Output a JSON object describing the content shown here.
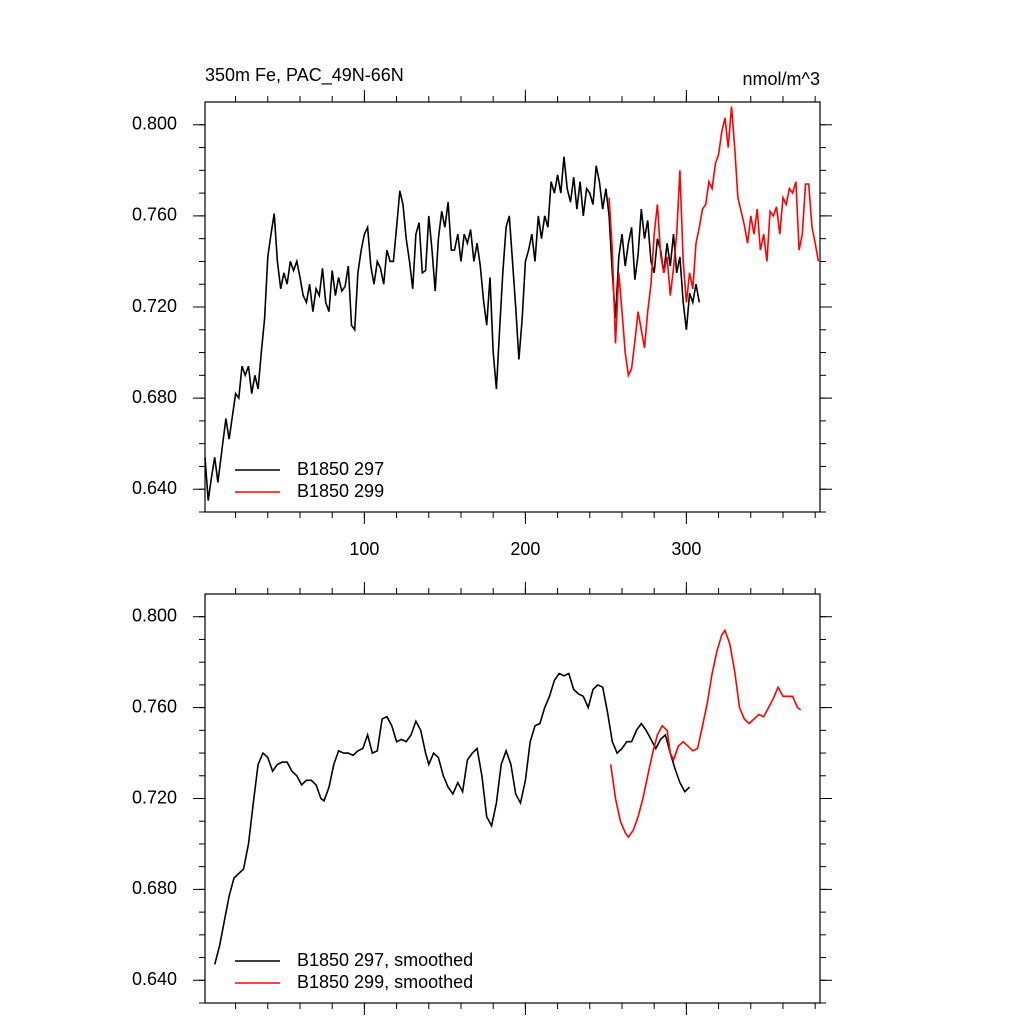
{
  "chart_data": [
    {
      "type": "line",
      "title": "350m Fe, PAC_49N-66N",
      "units": "nmol/m^3",
      "xlim": [
        1,
        383
      ],
      "xticks": [
        100,
        200,
        300
      ],
      "ylim": [
        0.63,
        0.81
      ],
      "yticks": [
        {
          "value": 0.64,
          "label": "0.640"
        },
        {
          "value": 0.68,
          "label": "0.680"
        },
        {
          "value": 0.72,
          "label": "0.720"
        },
        {
          "value": 0.76,
          "label": "0.760"
        },
        {
          "value": 0.8,
          "label": "0.800"
        }
      ],
      "legend": "lower left",
      "series": [
        {
          "name": "B1850 297",
          "color": "#000000",
          "x": [
            1,
            3,
            5,
            7,
            9,
            12,
            14,
            16,
            18,
            20,
            22,
            24,
            26,
            28,
            30,
            32,
            34,
            36,
            38,
            40,
            42,
            44,
            46,
            48,
            50,
            52,
            54,
            56,
            58,
            60,
            62,
            64,
            66,
            68,
            70,
            72,
            74,
            76,
            78,
            80,
            82,
            84,
            86,
            88,
            90,
            92,
            94,
            96,
            98,
            100,
            102,
            104,
            106,
            108,
            110,
            112,
            114,
            116,
            118,
            120,
            122,
            124,
            126,
            128,
            130,
            132,
            134,
            136,
            138,
            140,
            142,
            144,
            146,
            148,
            150,
            152,
            154,
            156,
            158,
            160,
            162,
            164,
            166,
            168,
            170,
            172,
            174,
            176,
            178,
            180,
            182,
            184,
            186,
            188,
            190,
            192,
            194,
            196,
            198,
            200,
            202,
            204,
            206,
            208,
            210,
            212,
            214,
            216,
            218,
            220,
            222,
            224,
            226,
            228,
            230,
            232,
            234,
            236,
            238,
            240,
            242,
            244,
            246,
            248,
            250,
            252,
            254,
            256,
            258,
            260,
            262,
            264,
            266,
            268,
            270,
            272,
            274,
            276,
            278,
            280,
            282,
            284,
            286,
            288,
            290,
            292,
            294,
            296,
            298,
            300,
            302,
            304,
            306,
            308
          ],
          "values": [
            0.654,
            0.635,
            0.645,
            0.654,
            0.643,
            0.66,
            0.671,
            0.662,
            0.672,
            0.682,
            0.68,
            0.694,
            0.69,
            0.694,
            0.682,
            0.69,
            0.684,
            0.7,
            0.715,
            0.742,
            0.752,
            0.761,
            0.74,
            0.728,
            0.735,
            0.73,
            0.74,
            0.736,
            0.74,
            0.733,
            0.725,
            0.722,
            0.73,
            0.718,
            0.728,
            0.725,
            0.737,
            0.722,
            0.718,
            0.736,
            0.725,
            0.733,
            0.727,
            0.729,
            0.738,
            0.712,
            0.71,
            0.735,
            0.745,
            0.752,
            0.755,
            0.738,
            0.73,
            0.74,
            0.737,
            0.73,
            0.745,
            0.74,
            0.74,
            0.755,
            0.771,
            0.765,
            0.75,
            0.74,
            0.728,
            0.752,
            0.757,
            0.735,
            0.736,
            0.76,
            0.745,
            0.727,
            0.75,
            0.762,
            0.755,
            0.766,
            0.745,
            0.745,
            0.752,
            0.74,
            0.752,
            0.748,
            0.754,
            0.74,
            0.748,
            0.738,
            0.723,
            0.712,
            0.733,
            0.7,
            0.684,
            0.71,
            0.735,
            0.755,
            0.76,
            0.74,
            0.72,
            0.697,
            0.715,
            0.74,
            0.745,
            0.752,
            0.74,
            0.76,
            0.75,
            0.76,
            0.755,
            0.775,
            0.77,
            0.778,
            0.77,
            0.786,
            0.772,
            0.766,
            0.777,
            0.763,
            0.775,
            0.76,
            0.772,
            0.77,
            0.765,
            0.782,
            0.775,
            0.763,
            0.772,
            0.76,
            0.735,
            0.715,
            0.742,
            0.752,
            0.738,
            0.748,
            0.755,
            0.732,
            0.743,
            0.763,
            0.75,
            0.758,
            0.74,
            0.735,
            0.75,
            0.745,
            0.735,
            0.748,
            0.738,
            0.752,
            0.735,
            0.742,
            0.722,
            0.71,
            0.726,
            0.722,
            0.73,
            0.722
          ]
        },
        {
          "name": "B1850 299",
          "color": "#ff0000",
          "x": [
            252,
            254,
            256,
            258,
            260,
            262,
            264,
            266,
            268,
            270,
            272,
            274,
            276,
            278,
            280,
            282,
            284,
            286,
            288,
            290,
            292,
            294,
            296,
            298,
            300,
            302,
            304,
            306,
            308,
            310,
            312,
            314,
            316,
            318,
            320,
            322,
            324,
            326,
            328,
            330,
            332,
            334,
            336,
            338,
            340,
            342,
            344,
            346,
            348,
            350,
            352,
            354,
            356,
            358,
            360,
            362,
            364,
            366,
            368,
            370,
            372,
            374,
            376,
            378,
            380,
            382
          ],
          "values": [
            0.768,
            0.745,
            0.704,
            0.735,
            0.718,
            0.7,
            0.69,
            0.693,
            0.705,
            0.718,
            0.71,
            0.702,
            0.718,
            0.73,
            0.752,
            0.765,
            0.743,
            0.735,
            0.742,
            0.725,
            0.737,
            0.752,
            0.78,
            0.74,
            0.722,
            0.735,
            0.728,
            0.748,
            0.755,
            0.763,
            0.765,
            0.775,
            0.772,
            0.783,
            0.787,
            0.797,
            0.803,
            0.79,
            0.808,
            0.79,
            0.768,
            0.762,
            0.756,
            0.748,
            0.76,
            0.752,
            0.763,
            0.745,
            0.752,
            0.74,
            0.762,
            0.76,
            0.764,
            0.752,
            0.768,
            0.765,
            0.772,
            0.77,
            0.775,
            0.745,
            0.752,
            0.774,
            0.774,
            0.755,
            0.748,
            0.74
          ]
        }
      ]
    },
    {
      "type": "line",
      "xlim": [
        1,
        383
      ],
      "ylim": [
        0.63,
        0.81
      ],
      "yticks": [
        {
          "value": 0.64,
          "label": "0.640"
        },
        {
          "value": 0.68,
          "label": "0.680"
        },
        {
          "value": 0.72,
          "label": "0.720"
        },
        {
          "value": 0.76,
          "label": "0.760"
        },
        {
          "value": 0.8,
          "label": "0.800"
        }
      ],
      "legend": "lower left",
      "series": [
        {
          "name": "B1850 297, smoothed",
          "color": "#000000",
          "x": [
            7,
            10,
            13,
            16,
            19,
            22,
            25,
            28,
            31,
            34,
            37,
            40,
            43,
            46,
            49,
            52,
            55,
            58,
            61,
            64,
            67,
            70,
            73,
            75,
            78,
            81,
            84,
            87,
            90,
            93,
            96,
            99,
            102,
            105,
            108,
            111,
            114,
            117,
            120,
            123,
            126,
            129,
            132,
            135,
            138,
            140,
            143,
            146,
            149,
            152,
            155,
            158,
            161,
            164,
            167,
            170,
            173,
            176,
            179,
            182,
            185,
            188,
            191,
            194,
            197,
            200,
            203,
            206,
            209,
            212,
            215,
            218,
            221,
            224,
            227,
            230,
            233,
            236,
            239,
            242,
            245,
            248,
            251,
            254,
            257,
            260,
            263,
            266,
            269,
            272,
            275,
            278,
            281,
            284,
            287,
            290,
            293,
            296,
            299,
            302
          ],
          "values": [
            0.647,
            0.655,
            0.666,
            0.677,
            0.685,
            0.687,
            0.689,
            0.7,
            0.718,
            0.735,
            0.74,
            0.738,
            0.732,
            0.735,
            0.736,
            0.736,
            0.732,
            0.73,
            0.726,
            0.728,
            0.728,
            0.726,
            0.72,
            0.719,
            0.725,
            0.735,
            0.741,
            0.74,
            0.74,
            0.739,
            0.741,
            0.742,
            0.748,
            0.74,
            0.741,
            0.755,
            0.756,
            0.752,
            0.745,
            0.746,
            0.745,
            0.748,
            0.754,
            0.75,
            0.74,
            0.735,
            0.74,
            0.738,
            0.73,
            0.725,
            0.722,
            0.727,
            0.723,
            0.737,
            0.74,
            0.742,
            0.73,
            0.712,
            0.708,
            0.718,
            0.735,
            0.741,
            0.735,
            0.722,
            0.718,
            0.728,
            0.745,
            0.752,
            0.753,
            0.76,
            0.765,
            0.772,
            0.775,
            0.774,
            0.775,
            0.768,
            0.766,
            0.765,
            0.76,
            0.768,
            0.77,
            0.769,
            0.758,
            0.745,
            0.74,
            0.742,
            0.745,
            0.745,
            0.75,
            0.753,
            0.75,
            0.746,
            0.742,
            0.746,
            0.748,
            0.74,
            0.733,
            0.727,
            0.723,
            0.725
          ]
        },
        {
          "name": "B1850 299, smoothed",
          "color": "#ff0000",
          "x": [
            253,
            256,
            259,
            262,
            264,
            267,
            270,
            273,
            276,
            279,
            282,
            285,
            288,
            290,
            292,
            295,
            298,
            301,
            304,
            307,
            310,
            313,
            316,
            319,
            322,
            324,
            327,
            330,
            333,
            336,
            339,
            342,
            345,
            348,
            351,
            354,
            357,
            360,
            363,
            366,
            369,
            371
          ],
          "values": [
            0.735,
            0.72,
            0.71,
            0.705,
            0.703,
            0.706,
            0.712,
            0.72,
            0.73,
            0.74,
            0.748,
            0.752,
            0.75,
            0.74,
            0.737,
            0.743,
            0.745,
            0.743,
            0.741,
            0.742,
            0.752,
            0.762,
            0.775,
            0.785,
            0.792,
            0.794,
            0.788,
            0.776,
            0.76,
            0.755,
            0.753,
            0.755,
            0.757,
            0.756,
            0.76,
            0.764,
            0.769,
            0.765,
            0.765,
            0.765,
            0.76,
            0.759
          ]
        }
      ]
    }
  ]
}
